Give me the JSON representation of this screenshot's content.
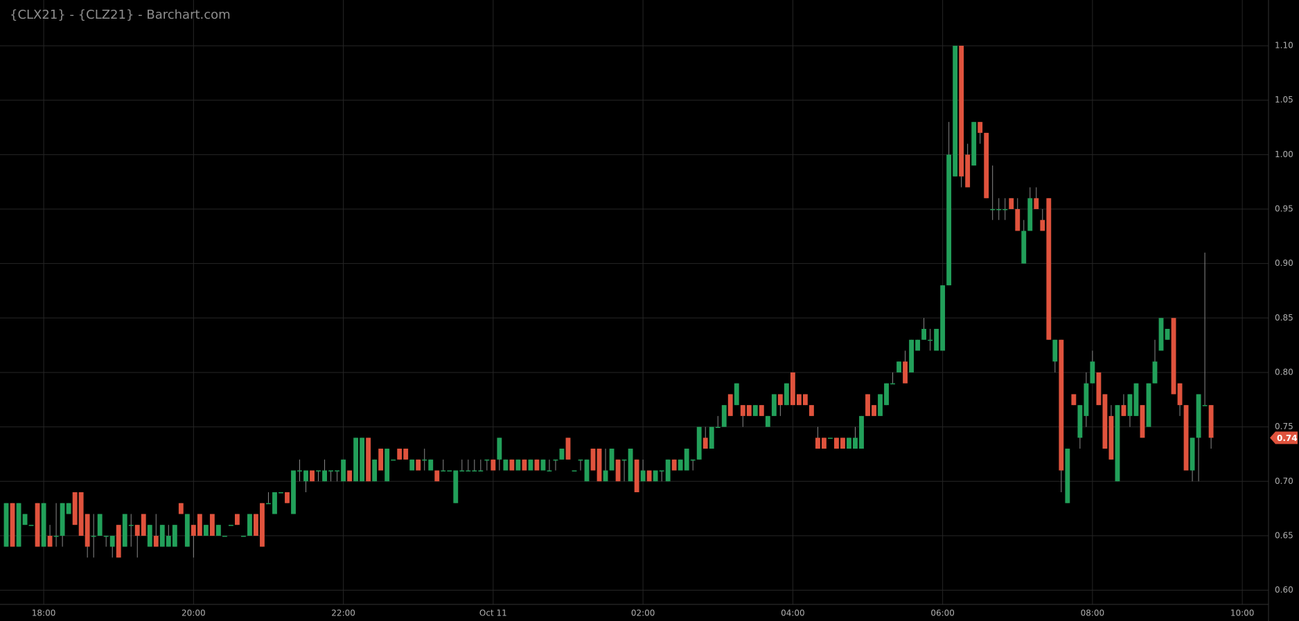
{
  "chart_data": {
    "type": "candlestick",
    "title": "{CLX21} - {CLZ21} - Barchart.com",
    "up_color": "#22a05a",
    "down_color": "#e0533d",
    "grid": true,
    "ylim": [
      0.587,
      1.142
    ],
    "yticks": [
      {
        "value": 0.6,
        "label": "0.60"
      },
      0.65,
      {
        "value": 0.7,
        "label": "0.70"
      },
      0.75,
      {
        "value": 0.8,
        "label": "0.80"
      },
      0.85,
      {
        "value": 0.9,
        "label": "0.90"
      },
      0.95,
      {
        "value": 1.0,
        "label": "1.00"
      },
      1.05,
      {
        "value": 1.1,
        "label": "1.10"
      }
    ],
    "xlim": [
      "17:25",
      "10:21"
    ],
    "xticks": [
      "18:00",
      "20:00",
      "22:00",
      {
        "value": "00:00",
        "label": "Oct 11"
      },
      "02:00",
      "04:00",
      "06:00",
      "08:00",
      "10:00"
    ],
    "last_price": 0.74,
    "columns": [
      "time",
      "open",
      "high",
      "low",
      "close"
    ],
    "candles": [
      [
        "17:30",
        0.64,
        0.68,
        0.64,
        0.68
      ],
      [
        "17:35",
        0.68,
        0.68,
        0.64,
        0.64
      ],
      [
        "17:40",
        0.64,
        0.68,
        0.64,
        0.68
      ],
      [
        "17:45",
        0.66,
        0.67,
        0.66,
        0.67
      ],
      [
        "17:50",
        0.66,
        0.66,
        0.66,
        0.66
      ],
      [
        "17:55",
        0.68,
        0.68,
        0.64,
        0.64
      ],
      [
        "18:00",
        0.64,
        0.68,
        0.64,
        0.68
      ],
      [
        "18:05",
        0.65,
        0.66,
        0.64,
        0.64
      ],
      [
        "18:10",
        0.65,
        0.68,
        0.64,
        0.65
      ],
      [
        "18:15",
        0.65,
        0.68,
        0.64,
        0.68
      ],
      [
        "18:20",
        0.67,
        0.68,
        0.67,
        0.68
      ],
      [
        "18:25",
        0.69,
        0.69,
        0.66,
        0.66
      ],
      [
        "18:30",
        0.69,
        0.69,
        0.65,
        0.65
      ],
      [
        "18:35",
        0.67,
        0.67,
        0.63,
        0.64
      ],
      [
        "18:40",
        0.65,
        0.67,
        0.63,
        0.65
      ],
      [
        "18:45",
        0.65,
        0.67,
        0.65,
        0.67
      ],
      [
        "18:50",
        0.65,
        0.65,
        0.64,
        0.65
      ],
      [
        "18:55",
        0.64,
        0.65,
        0.63,
        0.65
      ],
      [
        "19:00",
        0.66,
        0.66,
        0.63,
        0.63
      ],
      [
        "19:05",
        0.64,
        0.67,
        0.64,
        0.67
      ],
      [
        "19:10",
        0.66,
        0.67,
        0.64,
        0.66
      ],
      [
        "19:15",
        0.66,
        0.66,
        0.63,
        0.65
      ],
      [
        "19:20",
        0.67,
        0.67,
        0.65,
        0.65
      ],
      [
        "19:25",
        0.64,
        0.66,
        0.64,
        0.66
      ],
      [
        "19:30",
        0.65,
        0.67,
        0.64,
        0.64
      ],
      [
        "19:35",
        0.64,
        0.66,
        0.64,
        0.66
      ],
      [
        "19:40",
        0.64,
        0.66,
        0.64,
        0.65
      ],
      [
        "19:45",
        0.64,
        0.66,
        0.64,
        0.66
      ],
      [
        "19:50",
        0.68,
        0.68,
        0.67,
        0.67
      ],
      [
        "19:55",
        0.64,
        0.67,
        0.64,
        0.67
      ],
      [
        "20:00",
        0.66,
        0.66,
        0.63,
        0.65
      ],
      [
        "20:05",
        0.67,
        0.67,
        0.65,
        0.65
      ],
      [
        "20:10",
        0.65,
        0.66,
        0.65,
        0.66
      ],
      [
        "20:15",
        0.67,
        0.67,
        0.65,
        0.65
      ],
      [
        "20:20",
        0.65,
        0.66,
        0.65,
        0.66
      ],
      [
        "20:25",
        0.65,
        0.65,
        0.65,
        0.65
      ],
      [
        "20:30",
        0.66,
        0.66,
        0.66,
        0.66
      ],
      [
        "20:35",
        0.67,
        0.67,
        0.66,
        0.66
      ],
      [
        "20:40",
        0.65,
        0.65,
        0.65,
        0.65
      ],
      [
        "20:45",
        0.65,
        0.67,
        0.65,
        0.67
      ],
      [
        "20:50",
        0.67,
        0.67,
        0.65,
        0.65
      ],
      [
        "20:55",
        0.68,
        0.68,
        0.64,
        0.64
      ],
      [
        "21:00",
        0.68,
        0.69,
        0.68,
        0.68
      ],
      [
        "21:05",
        0.67,
        0.69,
        0.67,
        0.69
      ],
      [
        "21:10",
        0.69,
        0.69,
        0.69,
        0.69
      ],
      [
        "21:15",
        0.69,
        0.69,
        0.68,
        0.68
      ],
      [
        "21:20",
        0.67,
        0.71,
        0.67,
        0.71
      ],
      [
        "21:25",
        0.71,
        0.72,
        0.7,
        0.71
      ],
      [
        "21:30",
        0.7,
        0.71,
        0.69,
        0.71
      ],
      [
        "21:35",
        0.71,
        0.71,
        0.7,
        0.7
      ],
      [
        "21:40",
        0.71,
        0.71,
        0.7,
        0.71
      ],
      [
        "21:45",
        0.7,
        0.72,
        0.7,
        0.71
      ],
      [
        "21:50",
        0.71,
        0.71,
        0.7,
        0.71
      ],
      [
        "21:55",
        0.71,
        0.71,
        0.7,
        0.71
      ],
      [
        "22:00",
        0.7,
        0.72,
        0.7,
        0.72
      ],
      [
        "22:05",
        0.71,
        0.71,
        0.7,
        0.7
      ],
      [
        "22:10",
        0.7,
        0.74,
        0.7,
        0.74
      ],
      [
        "22:15",
        0.7,
        0.74,
        0.7,
        0.74
      ],
      [
        "22:20",
        0.74,
        0.74,
        0.7,
        0.7
      ],
      [
        "22:25",
        0.7,
        0.72,
        0.7,
        0.72
      ],
      [
        "22:30",
        0.73,
        0.73,
        0.71,
        0.71
      ],
      [
        "22:35",
        0.7,
        0.73,
        0.7,
        0.73
      ],
      [
        "22:40",
        0.72,
        0.72,
        0.72,
        0.72
      ],
      [
        "22:45",
        0.73,
        0.73,
        0.72,
        0.72
      ],
      [
        "22:50",
        0.73,
        0.73,
        0.72,
        0.72
      ],
      [
        "22:55",
        0.71,
        0.72,
        0.71,
        0.72
      ],
      [
        "23:00",
        0.72,
        0.72,
        0.71,
        0.71
      ],
      [
        "23:05",
        0.72,
        0.73,
        0.71,
        0.72
      ],
      [
        "23:10",
        0.71,
        0.72,
        0.71,
        0.72
      ],
      [
        "23:15",
        0.71,
        0.71,
        0.7,
        0.7
      ],
      [
        "23:20",
        0.71,
        0.72,
        0.71,
        0.71
      ],
      [
        "23:25",
        0.71,
        0.71,
        0.71,
        0.71
      ],
      [
        "23:30",
        0.68,
        0.71,
        0.68,
        0.71
      ],
      [
        "23:35",
        0.71,
        0.72,
        0.71,
        0.71
      ],
      [
        "23:40",
        0.71,
        0.72,
        0.71,
        0.71
      ],
      [
        "23:45",
        0.71,
        0.72,
        0.71,
        0.71
      ],
      [
        "23:50",
        0.71,
        0.72,
        0.71,
        0.71
      ],
      [
        "23:55",
        0.72,
        0.72,
        0.71,
        0.72
      ],
      [
        "00:00",
        0.72,
        0.72,
        0.71,
        0.71
      ],
      [
        "00:05",
        0.72,
        0.74,
        0.71,
        0.74
      ],
      [
        "00:10",
        0.71,
        0.72,
        0.71,
        0.72
      ],
      [
        "00:15",
        0.72,
        0.72,
        0.71,
        0.71
      ],
      [
        "00:20",
        0.71,
        0.72,
        0.71,
        0.72
      ],
      [
        "00:25",
        0.72,
        0.72,
        0.71,
        0.71
      ],
      [
        "00:30",
        0.71,
        0.72,
        0.71,
        0.72
      ],
      [
        "00:35",
        0.72,
        0.72,
        0.71,
        0.71
      ],
      [
        "00:40",
        0.71,
        0.72,
        0.71,
        0.72
      ],
      [
        "00:45",
        0.71,
        0.72,
        0.71,
        0.71
      ],
      [
        "00:50",
        0.72,
        0.72,
        0.71,
        0.72
      ],
      [
        "00:55",
        0.72,
        0.73,
        0.72,
        0.73
      ],
      [
        "01:00",
        0.74,
        0.74,
        0.72,
        0.72
      ],
      [
        "01:05",
        0.71,
        0.71,
        0.71,
        0.71
      ],
      [
        "01:10",
        0.72,
        0.72,
        0.71,
        0.72
      ],
      [
        "01:15",
        0.7,
        0.72,
        0.7,
        0.72
      ],
      [
        "01:20",
        0.73,
        0.73,
        0.71,
        0.71
      ],
      [
        "01:25",
        0.73,
        0.73,
        0.7,
        0.7
      ],
      [
        "01:30",
        0.7,
        0.73,
        0.7,
        0.71
      ],
      [
        "01:35",
        0.71,
        0.73,
        0.71,
        0.73
      ],
      [
        "01:40",
        0.72,
        0.72,
        0.7,
        0.7
      ],
      [
        "01:45",
        0.72,
        0.72,
        0.7,
        0.72
      ],
      [
        "01:50",
        0.7,
        0.73,
        0.7,
        0.73
      ],
      [
        "01:55",
        0.72,
        0.72,
        0.69,
        0.69
      ],
      [
        "02:00",
        0.7,
        0.72,
        0.7,
        0.71
      ],
      [
        "02:05",
        0.71,
        0.71,
        0.7,
        0.7
      ],
      [
        "02:10",
        0.7,
        0.71,
        0.7,
        0.71
      ],
      [
        "02:15",
        0.71,
        0.71,
        0.7,
        0.71
      ],
      [
        "02:20",
        0.7,
        0.72,
        0.7,
        0.72
      ],
      [
        "02:25",
        0.72,
        0.72,
        0.71,
        0.71
      ],
      [
        "02:30",
        0.71,
        0.72,
        0.71,
        0.72
      ],
      [
        "02:35",
        0.71,
        0.73,
        0.71,
        0.73
      ],
      [
        "02:40",
        0.72,
        0.72,
        0.71,
        0.72
      ],
      [
        "02:45",
        0.72,
        0.75,
        0.72,
        0.75
      ],
      [
        "02:50",
        0.74,
        0.75,
        0.73,
        0.73
      ],
      [
        "02:55",
        0.73,
        0.75,
        0.73,
        0.75
      ],
      [
        "03:00",
        0.75,
        0.76,
        0.75,
        0.75
      ],
      [
        "03:05",
        0.75,
        0.77,
        0.75,
        0.77
      ],
      [
        "03:10",
        0.78,
        0.78,
        0.76,
        0.76
      ],
      [
        "03:15",
        0.77,
        0.79,
        0.77,
        0.79
      ],
      [
        "03:20",
        0.77,
        0.77,
        0.75,
        0.76
      ],
      [
        "03:25",
        0.77,
        0.77,
        0.76,
        0.76
      ],
      [
        "03:30",
        0.76,
        0.77,
        0.76,
        0.77
      ],
      [
        "03:35",
        0.77,
        0.77,
        0.76,
        0.76
      ],
      [
        "03:40",
        0.75,
        0.76,
        0.75,
        0.76
      ],
      [
        "03:45",
        0.76,
        0.78,
        0.76,
        0.78
      ],
      [
        "03:50",
        0.78,
        0.78,
        0.76,
        0.77
      ],
      [
        "03:55",
        0.77,
        0.79,
        0.77,
        0.79
      ],
      [
        "04:00",
        0.8,
        0.8,
        0.77,
        0.77
      ],
      [
        "04:05",
        0.78,
        0.78,
        0.77,
        0.77
      ],
      [
        "04:10",
        0.78,
        0.78,
        0.77,
        0.77
      ],
      [
        "04:15",
        0.77,
        0.77,
        0.76,
        0.76
      ],
      [
        "04:20",
        0.74,
        0.75,
        0.73,
        0.73
      ],
      [
        "04:25",
        0.74,
        0.74,
        0.73,
        0.73
      ],
      [
        "04:30",
        0.74,
        0.74,
        0.74,
        0.74
      ],
      [
        "04:35",
        0.74,
        0.74,
        0.73,
        0.73
      ],
      [
        "04:40",
        0.74,
        0.74,
        0.73,
        0.73
      ],
      [
        "04:45",
        0.73,
        0.74,
        0.73,
        0.74
      ],
      [
        "04:50",
        0.73,
        0.75,
        0.73,
        0.74
      ],
      [
        "04:55",
        0.73,
        0.76,
        0.73,
        0.76
      ],
      [
        "05:00",
        0.78,
        0.78,
        0.76,
        0.76
      ],
      [
        "05:05",
        0.77,
        0.77,
        0.76,
        0.76
      ],
      [
        "05:10",
        0.76,
        0.78,
        0.76,
        0.78
      ],
      [
        "05:15",
        0.77,
        0.79,
        0.77,
        0.79
      ],
      [
        "05:20",
        0.79,
        0.8,
        0.79,
        0.79
      ],
      [
        "05:25",
        0.8,
        0.81,
        0.8,
        0.81
      ],
      [
        "05:30",
        0.81,
        0.82,
        0.79,
        0.79
      ],
      [
        "05:35",
        0.8,
        0.83,
        0.8,
        0.83
      ],
      [
        "05:40",
        0.82,
        0.83,
        0.82,
        0.83
      ],
      [
        "05:45",
        0.83,
        0.85,
        0.83,
        0.84
      ],
      [
        "05:50",
        0.83,
        0.84,
        0.82,
        0.83
      ],
      [
        "05:55",
        0.82,
        0.84,
        0.82,
        0.84
      ],
      [
        "06:00",
        0.82,
        0.88,
        0.82,
        0.88
      ],
      [
        "06:05",
        0.88,
        1.03,
        0.88,
        1.0
      ],
      [
        "06:10",
        0.98,
        1.1,
        0.98,
        1.1
      ],
      [
        "06:15",
        1.1,
        1.1,
        0.97,
        0.98
      ],
      [
        "06:20",
        1.0,
        1.01,
        0.97,
        0.97
      ],
      [
        "06:25",
        0.99,
        1.03,
        0.99,
        1.03
      ],
      [
        "06:30",
        1.03,
        1.03,
        1.01,
        1.02
      ],
      [
        "06:35",
        1.02,
        1.02,
        0.96,
        0.96
      ],
      [
        "06:40",
        0.95,
        0.99,
        0.94,
        0.95
      ],
      [
        "06:45",
        0.95,
        0.96,
        0.94,
        0.95
      ],
      [
        "06:50",
        0.95,
        0.96,
        0.94,
        0.95
      ],
      [
        "06:55",
        0.96,
        0.96,
        0.95,
        0.95
      ],
      [
        "07:00",
        0.95,
        0.96,
        0.93,
        0.93
      ],
      [
        "07:05",
        0.9,
        0.94,
        0.9,
        0.93
      ],
      [
        "07:10",
        0.93,
        0.97,
        0.93,
        0.96
      ],
      [
        "07:15",
        0.96,
        0.97,
        0.95,
        0.95
      ],
      [
        "07:20",
        0.94,
        0.95,
        0.93,
        0.93
      ],
      [
        "07:25",
        0.96,
        0.96,
        0.83,
        0.83
      ],
      [
        "07:30",
        0.81,
        0.83,
        0.8,
        0.83
      ],
      [
        "07:35",
        0.83,
        0.83,
        0.69,
        0.71
      ],
      [
        "07:40",
        0.68,
        0.73,
        0.68,
        0.73
      ],
      [
        "07:45",
        0.78,
        0.78,
        0.77,
        0.77
      ],
      [
        "07:50",
        0.74,
        0.77,
        0.73,
        0.77
      ],
      [
        "07:55",
        0.76,
        0.8,
        0.75,
        0.79
      ],
      [
        "08:00",
        0.79,
        0.82,
        0.79,
        0.81
      ],
      [
        "08:05",
        0.8,
        0.8,
        0.77,
        0.77
      ],
      [
        "08:10",
        0.78,
        0.78,
        0.73,
        0.73
      ],
      [
        "08:15",
        0.76,
        0.77,
        0.72,
        0.72
      ],
      [
        "08:20",
        0.7,
        0.77,
        0.7,
        0.77
      ],
      [
        "08:25",
        0.77,
        0.78,
        0.76,
        0.76
      ],
      [
        "08:30",
        0.76,
        0.78,
        0.75,
        0.78
      ],
      [
        "08:35",
        0.76,
        0.79,
        0.76,
        0.79
      ],
      [
        "08:40",
        0.77,
        0.77,
        0.74,
        0.74
      ],
      [
        "08:45",
        0.75,
        0.79,
        0.75,
        0.79
      ],
      [
        "08:50",
        0.79,
        0.83,
        0.79,
        0.81
      ],
      [
        "08:55",
        0.82,
        0.85,
        0.82,
        0.85
      ],
      [
        "09:00",
        0.83,
        0.84,
        0.83,
        0.84
      ],
      [
        "09:05",
        0.85,
        0.85,
        0.78,
        0.78
      ],
      [
        "09:10",
        0.79,
        0.79,
        0.76,
        0.77
      ],
      [
        "09:15",
        0.77,
        0.77,
        0.71,
        0.71
      ],
      [
        "09:20",
        0.71,
        0.74,
        0.7,
        0.74
      ],
      [
        "09:25",
        0.74,
        0.78,
        0.7,
        0.78
      ],
      [
        "09:30",
        0.77,
        0.91,
        0.77,
        0.77
      ],
      [
        "09:35",
        0.77,
        0.77,
        0.73,
        0.74
      ]
    ]
  }
}
